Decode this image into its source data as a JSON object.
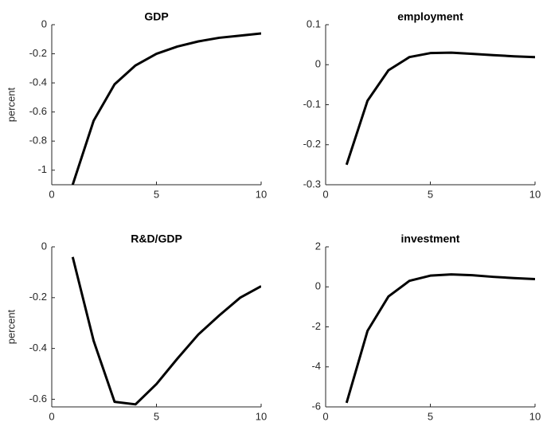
{
  "chart_data": [
    {
      "type": "line",
      "title": "GDP",
      "ylabel": "percent",
      "color": "#000000",
      "x": [
        1,
        2,
        3,
        4,
        5,
        6,
        7,
        8,
        9,
        10
      ],
      "values": [
        -1.1,
        -0.66,
        -0.41,
        -0.28,
        -0.2,
        -0.15,
        -0.115,
        -0.09,
        -0.075,
        -0.06
      ],
      "xlim": [
        0,
        10
      ],
      "xticks": [
        0,
        5,
        10
      ],
      "ylim": [
        -1.1,
        0
      ],
      "yticks": [
        -1,
        -0.8,
        -0.6,
        -0.4,
        -0.2,
        0
      ]
    },
    {
      "type": "line",
      "title": "employment",
      "color": "#000000",
      "x": [
        1,
        2,
        3,
        4,
        5,
        6,
        7,
        8,
        9,
        10
      ],
      "values": [
        -0.25,
        -0.09,
        -0.014,
        0.019,
        0.029,
        0.03,
        0.027,
        0.024,
        0.021,
        0.019
      ],
      "xlim": [
        0,
        10
      ],
      "xticks": [
        0,
        5,
        10
      ],
      "ylim": [
        -0.3,
        0.1
      ],
      "yticks": [
        -0.3,
        -0.2,
        -0.1,
        0,
        0.1
      ]
    },
    {
      "type": "line",
      "title": "R&D/GDP",
      "ylabel": "percent",
      "color": "#000000",
      "x": [
        1,
        2,
        3,
        4,
        5,
        6,
        7,
        8,
        9,
        10
      ],
      "values": [
        -0.04,
        -0.37,
        -0.61,
        -0.62,
        -0.54,
        -0.44,
        -0.345,
        -0.27,
        -0.2,
        -0.155
      ],
      "xlim": [
        0,
        10
      ],
      "xticks": [
        0,
        5,
        10
      ],
      "ylim": [
        -0.63,
        0
      ],
      "yticks": [
        -0.6,
        -0.4,
        -0.2,
        0
      ]
    },
    {
      "type": "line",
      "title": "investment",
      "color": "#000000",
      "x": [
        1,
        2,
        3,
        4,
        5,
        6,
        7,
        8,
        9,
        10
      ],
      "values": [
        -5.8,
        -2.2,
        -0.48,
        0.3,
        0.56,
        0.62,
        0.58,
        0.5,
        0.44,
        0.39
      ],
      "xlim": [
        0,
        10
      ],
      "xticks": [
        0,
        5,
        10
      ],
      "ylim": [
        -6,
        2
      ],
      "yticks": [
        -6,
        -4,
        -2,
        0,
        2
      ]
    }
  ]
}
